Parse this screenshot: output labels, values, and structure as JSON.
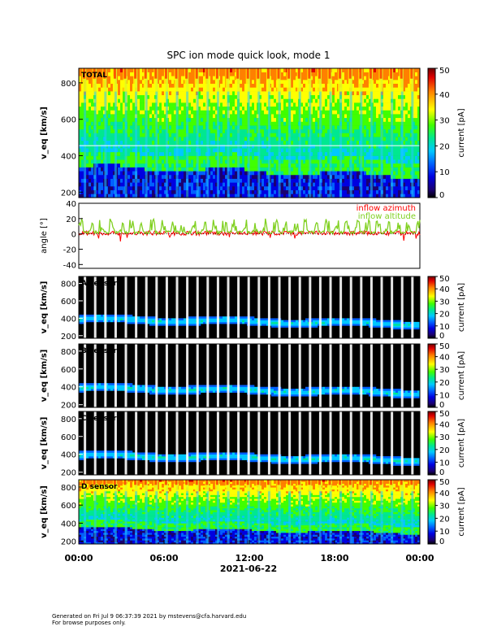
{
  "title": "SPC ion mode quick look, mode 1",
  "footer": {
    "line1": "Generated on Fri Jul  9 06:37:39 2021 by mstevens@cfa.harvard.edu",
    "line2": "For browse purposes only."
  },
  "chart_data": [
    {
      "type": "heatmap",
      "panel_label": "TOTAL",
      "ylabel": "v_eq [km/s]",
      "ylim": [
        170,
        880
      ],
      "yticks": [
        200,
        400,
        600,
        800
      ],
      "colorbar": {
        "label": "current [pA]",
        "range": [
          0,
          50
        ],
        "ticks": [
          0,
          10,
          20,
          30,
          40,
          50
        ]
      },
      "ridge_velocity_kms": {
        "start": 380,
        "end": 330
      },
      "white_guideline_kms": 455
    },
    {
      "type": "line",
      "ylabel": "angle [°]",
      "ylim": [
        -45,
        40
      ],
      "yticks": [
        -40,
        -20,
        0,
        20,
        40
      ],
      "series": [
        {
          "name": "inflow azimuth",
          "color": "#ff0000"
        },
        {
          "name": "inflow altitude",
          "color": "#80d020"
        }
      ]
    },
    {
      "type": "heatmap",
      "panel_label": "A sensor",
      "ylabel": "v_eq [km/s]",
      "ylim": [
        170,
        880
      ],
      "yticks": [
        200,
        400,
        600,
        800
      ],
      "colorbar": {
        "label": "current [pA]",
        "range": [
          0,
          50
        ],
        "ticks": [
          0,
          10,
          20,
          30,
          40,
          50
        ]
      }
    },
    {
      "type": "heatmap",
      "panel_label": "B sensor",
      "ylabel": "v_eq [km/s]",
      "ylim": [
        170,
        880
      ],
      "yticks": [
        200,
        400,
        600,
        800
      ],
      "colorbar": {
        "label": "current [pA]",
        "range": [
          0,
          50
        ],
        "ticks": [
          0,
          10,
          20,
          30,
          40,
          50
        ]
      }
    },
    {
      "type": "heatmap",
      "panel_label": "C sensor",
      "ylabel": "v_eq [km/s]",
      "ylim": [
        170,
        880
      ],
      "yticks": [
        200,
        400,
        600,
        800
      ],
      "colorbar": {
        "label": "current [pA]",
        "range": [
          0,
          50
        ],
        "ticks": [
          0,
          10,
          20,
          30,
          40,
          50
        ]
      }
    },
    {
      "type": "heatmap",
      "panel_label": "D sensor",
      "ylabel": "v_eq [km/s]",
      "ylim": [
        170,
        880
      ],
      "yticks": [
        200,
        400,
        600,
        800
      ],
      "colorbar": {
        "label": "current [pA]",
        "range": [
          0,
          50
        ],
        "ticks": [
          0,
          10,
          20,
          30,
          40,
          50
        ]
      }
    }
  ],
  "x_axis": {
    "ticks": [
      "00:00",
      "06:00",
      "12:00",
      "18:00",
      "00:00"
    ],
    "date": "2021-06-22",
    "range_hours": [
      0,
      24
    ]
  },
  "colors": {
    "colormap": [
      "#1a0070",
      "#0000e0",
      "#0060ff",
      "#00c8ff",
      "#00e890",
      "#40ff00",
      "#ffff00",
      "#ff8000",
      "#e00000",
      "#700000"
    ],
    "background_dark": "#000000",
    "azimuth": "#ff0000",
    "altitude": "#80d020"
  }
}
